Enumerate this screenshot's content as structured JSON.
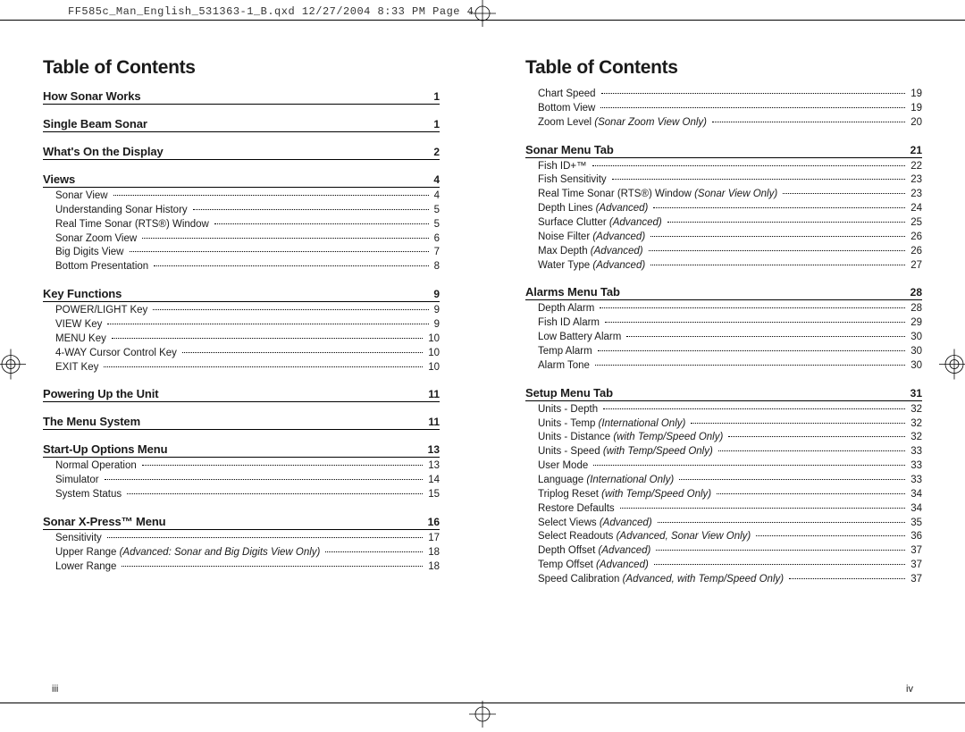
{
  "slug": "FF585c_Man_English_531363-1_B.qxd  12/27/2004  8:33 PM  Page 4",
  "title_left": "Table of Contents",
  "title_right": "Table of Contents",
  "page_num_left": "iii",
  "page_num_right": "iv",
  "colors": {
    "text": "#1a1a1a",
    "rule": "#000000",
    "bg": "#ffffff"
  },
  "left_sections": [
    {
      "title": "How Sonar Works",
      "page": "1",
      "items": []
    },
    {
      "title": "Single Beam Sonar",
      "page": "1",
      "items": []
    },
    {
      "title": "What's On the Display",
      "page": "2",
      "items": []
    },
    {
      "title": "Views",
      "page": "4",
      "items": [
        {
          "label": "Sonar View",
          "page": "4"
        },
        {
          "label": "Understanding Sonar History",
          "page": "5"
        },
        {
          "label": "Real Time Sonar (RTS®) Window",
          "page": "5"
        },
        {
          "label": "Sonar Zoom View",
          "page": "6"
        },
        {
          "label": "Big Digits View",
          "page": "7"
        },
        {
          "label": "Bottom Presentation",
          "page": "8"
        }
      ]
    },
    {
      "title": "Key Functions",
      "page": "9",
      "items": [
        {
          "label": "POWER/LIGHT Key",
          "page": "9"
        },
        {
          "label": "VIEW Key",
          "page": "9"
        },
        {
          "label": "MENU Key",
          "page": "10"
        },
        {
          "label": "4-WAY Cursor Control Key",
          "page": "10"
        },
        {
          "label": "EXIT Key",
          "page": "10"
        }
      ]
    },
    {
      "title": "Powering Up the Unit",
      "page": "11",
      "items": []
    },
    {
      "title": "The Menu System",
      "page": "11",
      "items": []
    },
    {
      "title": "Start-Up Options Menu",
      "page": "13",
      "items": [
        {
          "label": "Normal Operation",
          "page": "13"
        },
        {
          "label": "Simulator",
          "page": "14"
        },
        {
          "label": "System Status",
          "page": "15"
        }
      ]
    },
    {
      "title": "Sonar X-Press™ Menu",
      "page": "16",
      "items": [
        {
          "label": "Sensitivity",
          "page": "17"
        },
        {
          "label": "Upper Range",
          "ann": "(Advanced: Sonar and Big Digits View Only)",
          "page": "18"
        },
        {
          "label": "Lower Range",
          "page": "18"
        }
      ]
    }
  ],
  "right_pre_items": [
    {
      "label": "Chart Speed",
      "page": "19"
    },
    {
      "label": "Bottom View",
      "page": "19"
    },
    {
      "label": "Zoom Level",
      "ann": "(Sonar Zoom View Only)",
      "page": "20"
    }
  ],
  "right_sections": [
    {
      "title": "Sonar Menu Tab",
      "page": "21",
      "items": [
        {
          "label": "Fish ID+™",
          "page": "22"
        },
        {
          "label": "Fish Sensitivity",
          "page": "23"
        },
        {
          "label": "Real Time Sonar (RTS®) Window",
          "ann": "(Sonar View Only)",
          "page": "23"
        },
        {
          "label": "Depth Lines",
          "ann": "(Advanced)",
          "page": "24"
        },
        {
          "label": "Surface Clutter",
          "ann": "(Advanced)",
          "page": "25"
        },
        {
          "label": "Noise Filter",
          "ann": "(Advanced)",
          "page": "26"
        },
        {
          "label": "Max Depth",
          "ann": "(Advanced)",
          "page": "26"
        },
        {
          "label": "Water Type",
          "ann": "(Advanced)",
          "page": "27"
        }
      ]
    },
    {
      "title": "Alarms Menu Tab",
      "page": "28",
      "items": [
        {
          "label": "Depth Alarm",
          "page": "28"
        },
        {
          "label": "Fish ID Alarm",
          "page": "29"
        },
        {
          "label": "Low Battery Alarm",
          "page": "30"
        },
        {
          "label": "Temp Alarm",
          "page": "30"
        },
        {
          "label": "Alarm Tone",
          "page": "30"
        }
      ]
    },
    {
      "title": "Setup Menu Tab",
      "page": "31",
      "items": [
        {
          "label": "Units - Depth",
          "page": "32"
        },
        {
          "label": "Units - Temp",
          "ann": "(International Only)",
          "page": "32"
        },
        {
          "label": "Units - Distance",
          "ann": "(with Temp/Speed Only)",
          "page": "32"
        },
        {
          "label": "Units - Speed",
          "ann": "(with Temp/Speed Only)",
          "page": "33"
        },
        {
          "label": "User Mode",
          "page": "33"
        },
        {
          "label": "Language",
          "ann": "(International Only)",
          "page": "33"
        },
        {
          "label": "Triplog Reset",
          "ann": "(with Temp/Speed Only)",
          "page": "34"
        },
        {
          "label": "Restore Defaults",
          "page": "34"
        },
        {
          "label": "Select Views",
          "ann": "(Advanced)",
          "page": "35"
        },
        {
          "label": "Select Readouts",
          "ann": "(Advanced, Sonar View Only)",
          "page": "36"
        },
        {
          "label": "Depth Offset",
          "ann": "(Advanced)",
          "page": "37"
        },
        {
          "label": "Temp Offset",
          "ann": "(Advanced)",
          "page": "37"
        },
        {
          "label": "Speed Calibration",
          "ann": "(Advanced, with Temp/Speed Only)",
          "page": "37"
        }
      ]
    }
  ]
}
